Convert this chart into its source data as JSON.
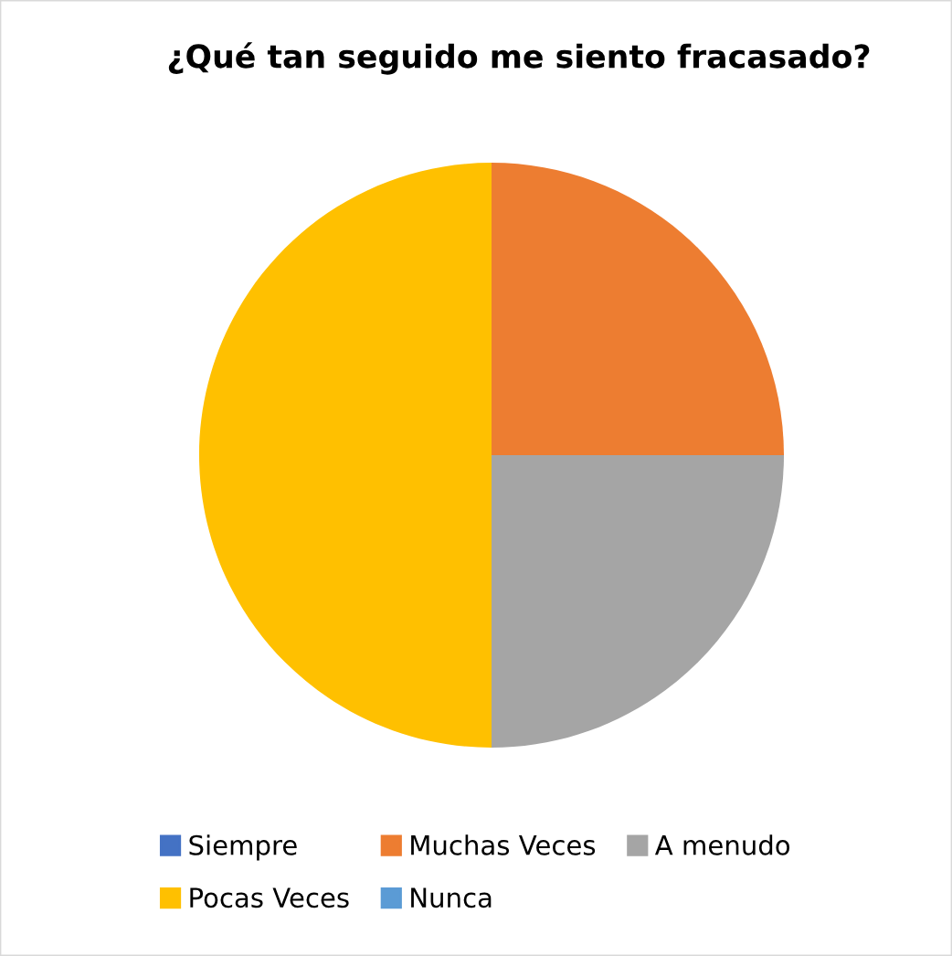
{
  "chart_data": {
    "type": "pie",
    "title": "¿Qué tan seguido me siento fracasado?",
    "categories": [
      "Siempre",
      "Muchas Veces",
      "A menudo",
      "Pocas Veces",
      "Nunca"
    ],
    "values": [
      0,
      25,
      25,
      50,
      0
    ],
    "colors": [
      "#4472c4",
      "#ed7d31",
      "#a5a5a5",
      "#ffc000",
      "#5b9bd5"
    ],
    "legend": "bottom"
  }
}
